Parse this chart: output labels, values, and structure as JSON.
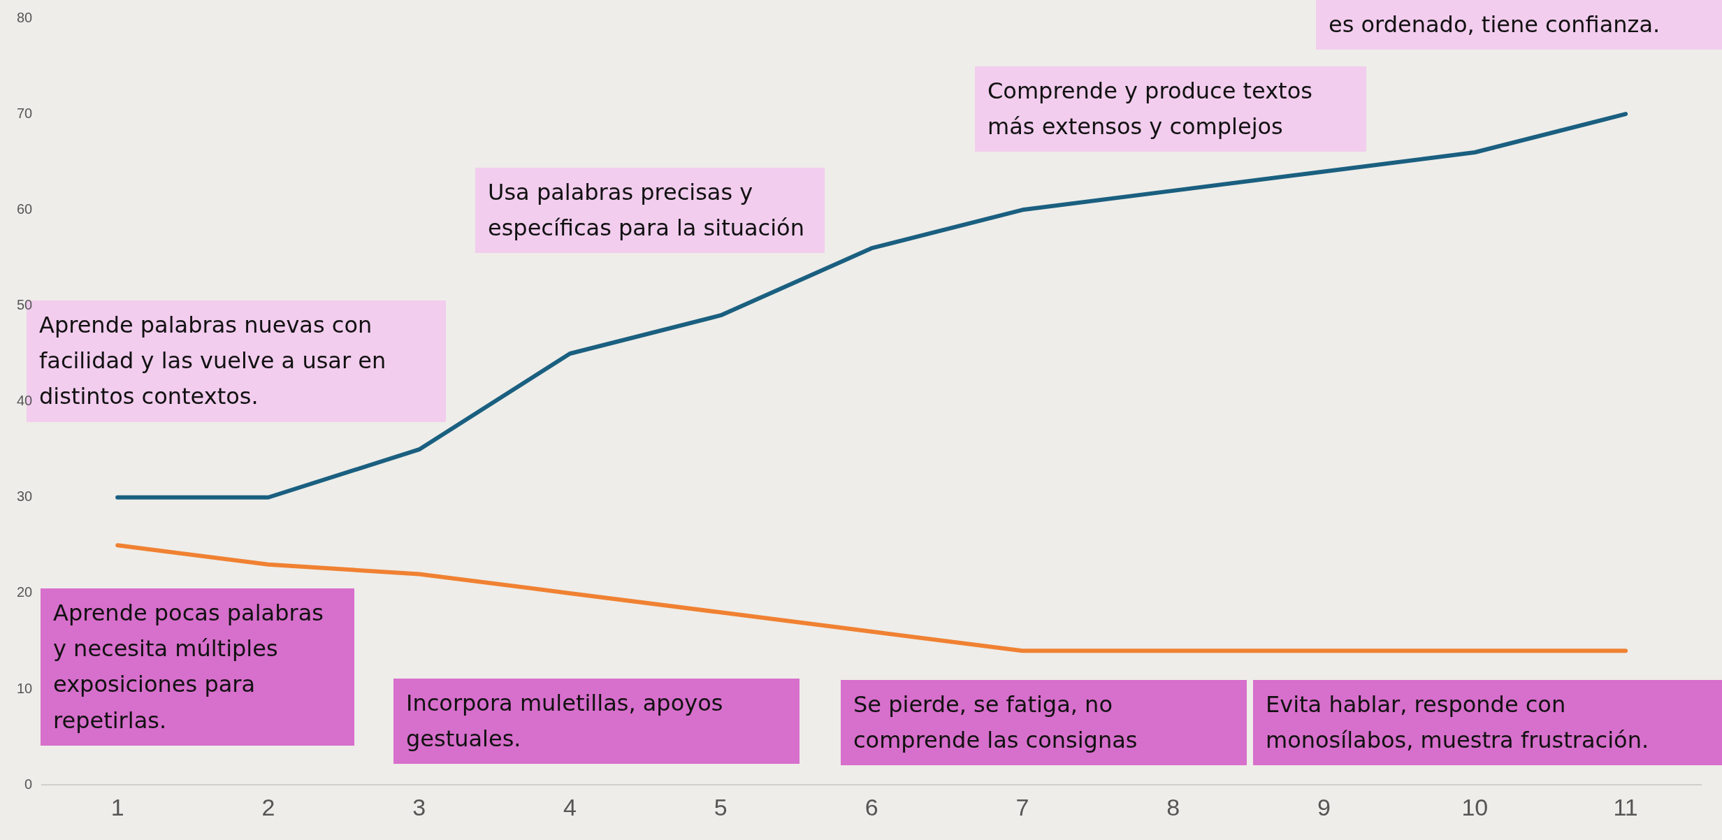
{
  "chart_data": {
    "type": "line",
    "categories": [
      "1",
      "2",
      "3",
      "4",
      "5",
      "6",
      "7",
      "8",
      "9",
      "10",
      "11"
    ],
    "series": [
      {
        "color": "#1a5f80",
        "values": [
          30,
          30,
          35,
          45,
          49,
          56,
          60,
          62,
          64,
          66,
          70
        ]
      },
      {
        "color": "#f08132",
        "values": [
          25,
          23,
          22,
          20,
          18,
          16,
          14,
          14,
          14,
          14,
          14
        ]
      }
    ],
    "ylim": [
      0,
      80
    ],
    "yticks": [
      0,
      10,
      20,
      30,
      40,
      50,
      60,
      70,
      80
    ],
    "grid": false,
    "legend": false,
    "annotations": [
      "es ordenado, tiene confianza.",
      "Comprende y produce textos más extensos y complejos",
      "Usa palabras precisas y específicas para la situación",
      "Aprende palabras nuevas con facilidad y las vuelve a usar en distintos contextos.",
      "Aprende pocas palabras y necesita múltiples exposiciones para repetirlas.",
      "Incorpora muletillas, apoyos gestuales.",
      "Se pierde, se fatiga, no comprende las consignas",
      "Evita hablar, responde con monosílabos, muestra frustración."
    ]
  }
}
